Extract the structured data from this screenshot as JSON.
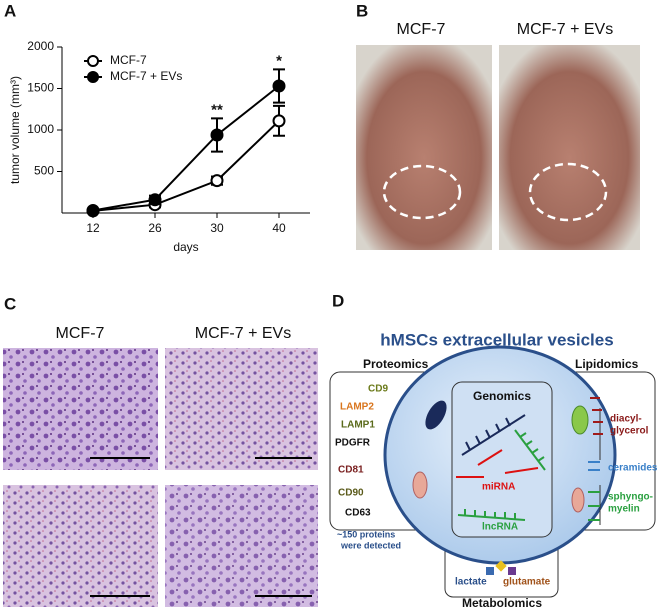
{
  "panel_labels": [
    "A",
    "B",
    "C",
    "D"
  ],
  "chart_data": {
    "type": "line",
    "x_label": "days",
    "y_label": "tumor volume (mm³)",
    "categories": [
      "12",
      "26",
      "30",
      "40"
    ],
    "ylim": [
      0,
      2000
    ],
    "yticks": [
      500,
      1000,
      1500,
      2000
    ],
    "legend": "upper-left",
    "series": [
      {
        "name": "MCF-7",
        "color": "#000000",
        "marker": "open",
        "values": [
          25,
          100,
          390,
          1110
        ],
        "errors": [
          10,
          30,
          50,
          180
        ]
      },
      {
        "name": "MCF-7 + EVs",
        "color": "#000000",
        "marker": "filled",
        "values": [
          30,
          160,
          940,
          1530
        ],
        "errors": [
          15,
          50,
          200,
          200
        ]
      }
    ],
    "annotations": [
      null,
      null,
      "**",
      "*"
    ]
  },
  "photos_b": {
    "captions": [
      "MCF-7",
      "MCF-7 + EVs"
    ]
  },
  "photos_c": {
    "captions": [
      "MCF-7",
      "MCF-7 + EVs"
    ]
  },
  "diagram": {
    "title": "hMSCs extracellular vesicles",
    "proteomics": {
      "title": "Proteomics",
      "markers": [
        "CD9",
        "LAMP2",
        "LAMP1",
        "PDGFR",
        "CD81",
        "CD90",
        "CD63"
      ],
      "note": [
        "~150 proteins",
        "were detected"
      ]
    },
    "genomics": {
      "title": "Genomics",
      "rna": [
        "miRNA",
        "lncRNA"
      ]
    },
    "lipidomics": {
      "title": "Lipidomics",
      "lipids": [
        [
          "diacyl-",
          "glycerol"
        ],
        [
          "ceramides"
        ],
        [
          "sphyngo-",
          "myelin"
        ]
      ]
    },
    "metabolomics": {
      "title": "Metabolomics",
      "metabolites": [
        "lactate",
        "glutamate"
      ]
    }
  }
}
